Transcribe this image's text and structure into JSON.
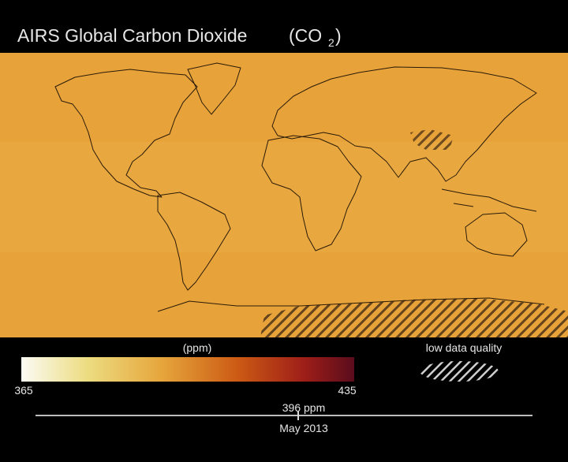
{
  "title": {
    "text": "AIRS Global Carbon Dioxide",
    "formula_open": "(CO",
    "formula_subscript": "2",
    "formula_close": ")"
  },
  "colorbar": {
    "label": "(ppm)",
    "min": 365,
    "max": 435
  },
  "legend": {
    "hatch_label": "low data quality"
  },
  "timeline": {
    "reading": "396 ppm",
    "date": "May 2013"
  }
}
